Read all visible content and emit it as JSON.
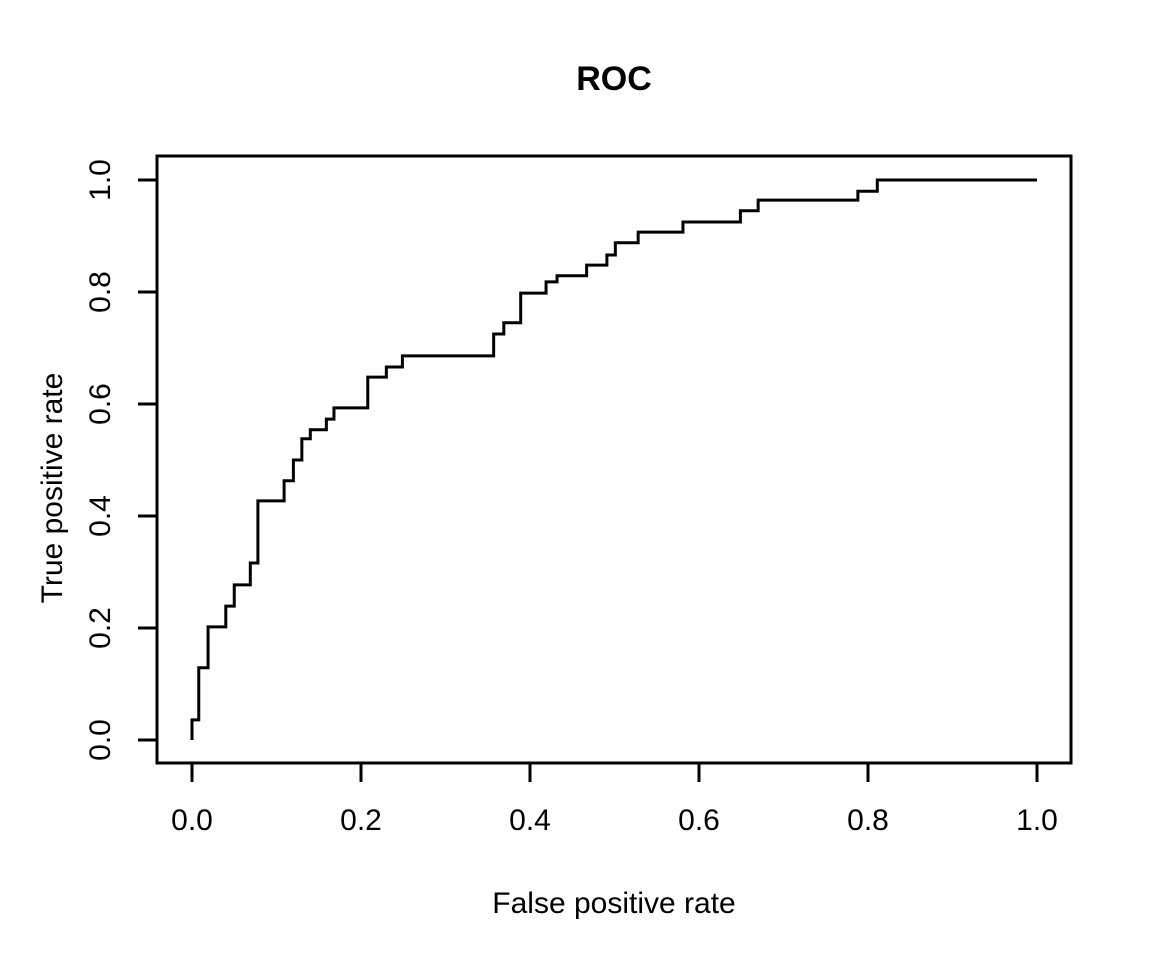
{
  "page": {
    "background": "#ffffff",
    "foreground": "#000000"
  },
  "chart_data": {
    "type": "line",
    "chart_kind": "ROC step curve (R base graphics style)",
    "title": "ROC",
    "xlabel": "False positive rate",
    "ylabel": "True positive rate",
    "xlim": [
      -0.04,
      1.04
    ],
    "ylim": [
      -0.04,
      1.04
    ],
    "grid": false,
    "legend": "none",
    "axis_color": "#000000",
    "line_color": "#000000",
    "x_ticks": {
      "values": [
        0,
        0.2,
        0.4,
        0.6,
        0.8,
        1
      ],
      "labels": [
        "0.0",
        "0.2",
        "0.4",
        "0.6",
        "0.8",
        "1.0"
      ]
    },
    "y_ticks": {
      "values": [
        0,
        0.2,
        0.4,
        0.6,
        0.8,
        1
      ],
      "labels": [
        "0.0",
        "0.2",
        "0.4",
        "0.6",
        "0.8",
        "1.0"
      ]
    },
    "series": [
      {
        "name": "ROC curve",
        "draw": "step-polyline",
        "points": [
          [
            0.0,
            0.0
          ],
          [
            0.0,
            0.036
          ],
          [
            0.008,
            0.036
          ],
          [
            0.008,
            0.129
          ],
          [
            0.019,
            0.129
          ],
          [
            0.019,
            0.202
          ],
          [
            0.04,
            0.202
          ],
          [
            0.04,
            0.239
          ],
          [
            0.05,
            0.239
          ],
          [
            0.05,
            0.277
          ],
          [
            0.069,
            0.277
          ],
          [
            0.069,
            0.316
          ],
          [
            0.078,
            0.316
          ],
          [
            0.078,
            0.427
          ],
          [
            0.109,
            0.427
          ],
          [
            0.109,
            0.463
          ],
          [
            0.12,
            0.463
          ],
          [
            0.12,
            0.5
          ],
          [
            0.13,
            0.5
          ],
          [
            0.13,
            0.538
          ],
          [
            0.14,
            0.538
          ],
          [
            0.14,
            0.554
          ],
          [
            0.159,
            0.554
          ],
          [
            0.159,
            0.573
          ],
          [
            0.168,
            0.573
          ],
          [
            0.168,
            0.593
          ],
          [
            0.208,
            0.593
          ],
          [
            0.208,
            0.648
          ],
          [
            0.23,
            0.648
          ],
          [
            0.23,
            0.666
          ],
          [
            0.249,
            0.666
          ],
          [
            0.249,
            0.686
          ],
          [
            0.357,
            0.686
          ],
          [
            0.357,
            0.725
          ],
          [
            0.369,
            0.725
          ],
          [
            0.369,
            0.745
          ],
          [
            0.389,
            0.745
          ],
          [
            0.389,
            0.798
          ],
          [
            0.419,
            0.798
          ],
          [
            0.419,
            0.818
          ],
          [
            0.432,
            0.818
          ],
          [
            0.432,
            0.829
          ],
          [
            0.467,
            0.829
          ],
          [
            0.467,
            0.848
          ],
          [
            0.491,
            0.848
          ],
          [
            0.491,
            0.866
          ],
          [
            0.501,
            0.866
          ],
          [
            0.501,
            0.888
          ],
          [
            0.528,
            0.888
          ],
          [
            0.528,
            0.907
          ],
          [
            0.581,
            0.907
          ],
          [
            0.581,
            0.925
          ],
          [
            0.649,
            0.925
          ],
          [
            0.649,
            0.945
          ],
          [
            0.67,
            0.945
          ],
          [
            0.67,
            0.964
          ],
          [
            0.788,
            0.964
          ],
          [
            0.788,
            0.98
          ],
          [
            0.811,
            0.98
          ],
          [
            0.811,
            1.0
          ],
          [
            1.0,
            1.0
          ]
        ]
      }
    ]
  }
}
